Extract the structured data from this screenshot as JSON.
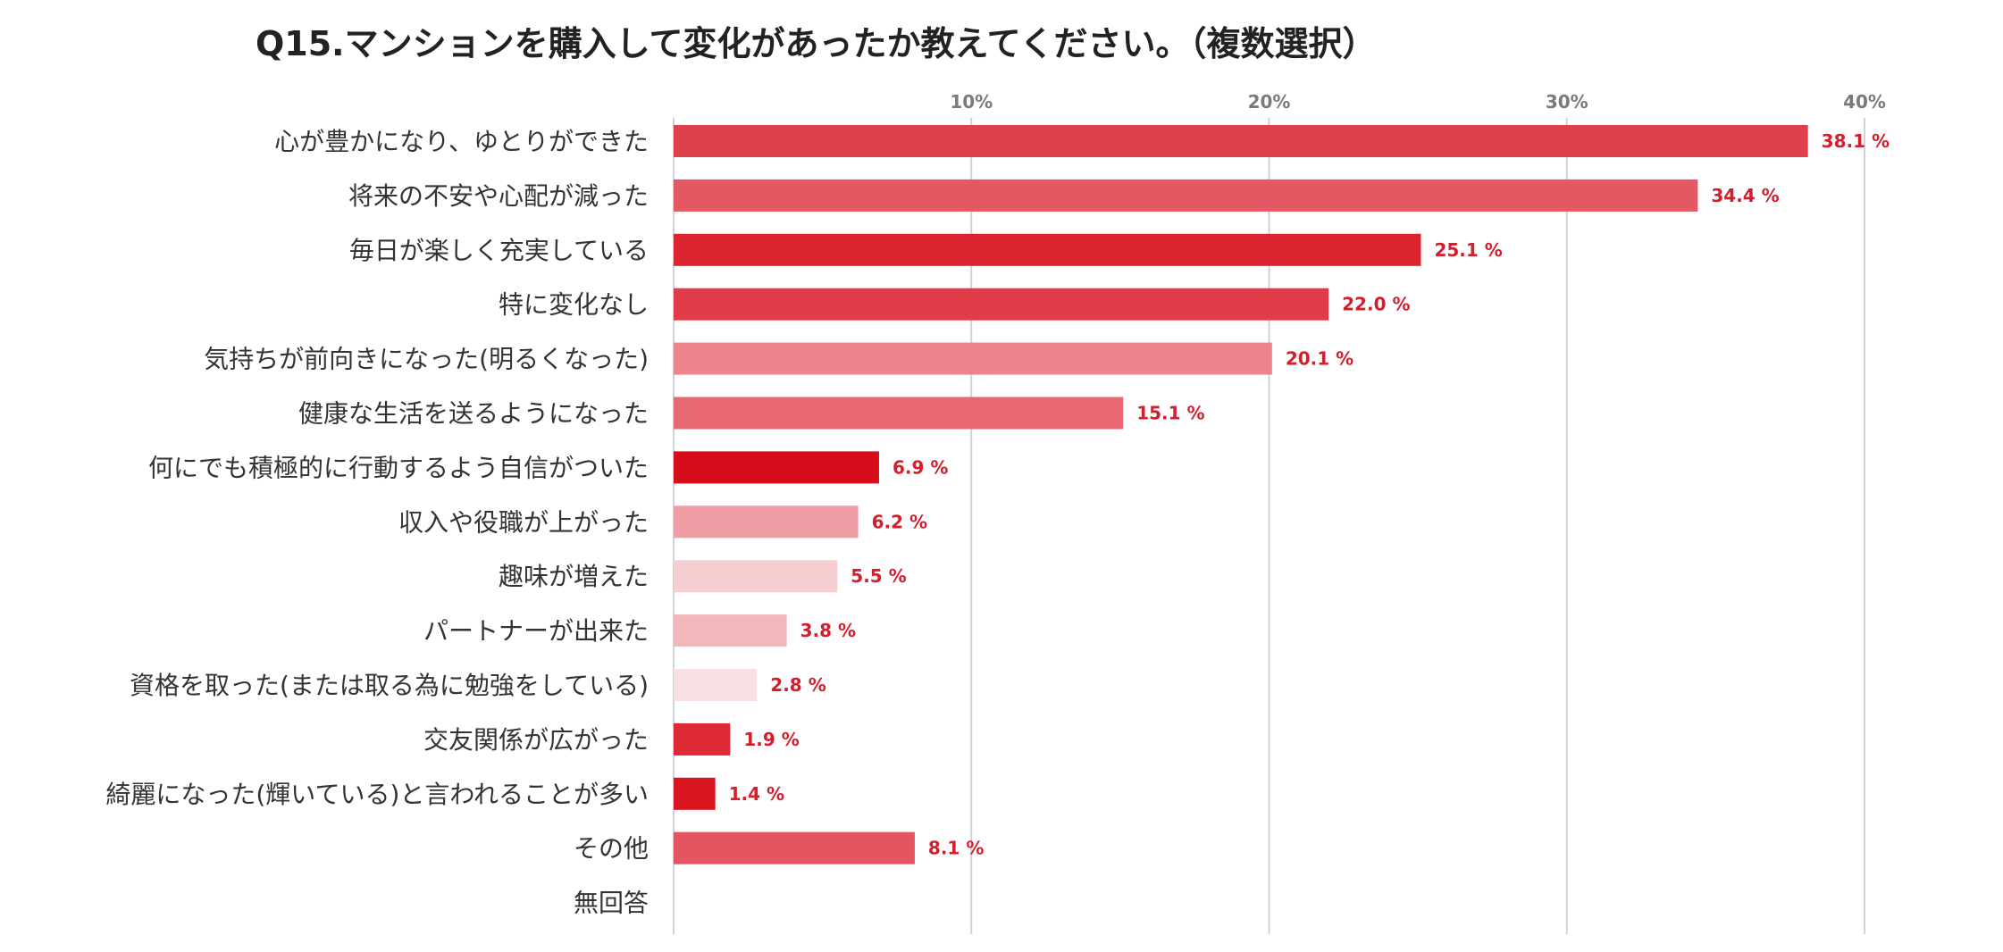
{
  "chart_data": {
    "type": "bar",
    "orientation": "horizontal",
    "title": "Q15.マンションを購入して変化があったか教えてください。（複数選択）",
    "xlabel": "",
    "ylabel": "",
    "xlim": [
      0,
      40
    ],
    "x_ticks": [
      10,
      20,
      30,
      40
    ],
    "x_tick_labels": [
      "10%",
      "20%",
      "30%",
      "40%"
    ],
    "grid": true,
    "unit_suffix": " %",
    "categories": [
      "心が豊かになり、ゆとりができた",
      "将来の不安や心配が減った",
      "毎日が楽しく充実している",
      "特に変化なし",
      "気持ちが前向きになった(明るくなった)",
      "健康な生活を送るようになった",
      "何にでも積極的に行動するよう自信がついた",
      "収入や役職が上がった",
      "趣味が増えた",
      "パートナーが出来た",
      "資格を取った(または取る為に勉強をしている)",
      "交友関係が広がった",
      "綺麗になった(輝いている)と言われることが多い",
      "その他",
      "無回答"
    ],
    "values": [
      38.1,
      34.4,
      25.1,
      22.0,
      20.1,
      15.1,
      6.9,
      6.2,
      5.5,
      3.8,
      2.8,
      1.9,
      1.4,
      8.1,
      null
    ],
    "value_labels": [
      "38.1 %",
      "34.4 %",
      "25.1 %",
      "22.0 %",
      "20.1 %",
      "15.1 %",
      "6.9 %",
      "6.2 %",
      "5.5 %",
      "3.8 %",
      "2.8 %",
      "1.9 %",
      "1.4 %",
      "8.1 %",
      ""
    ],
    "bar_colors": [
      "#e0404c",
      "#e35863",
      "#dc2430",
      "#e03c48",
      "#ec858c",
      "#e76870",
      "#d60d1a",
      "#ee9ea4",
      "#f6cdd0",
      "#f2b7bb",
      "#f9e1e3",
      "#dd2a36",
      "#d8141f",
      "#e4555f",
      "#ffffff"
    ],
    "label_color": "#d21e2d",
    "grid_color": "#ccd3de"
  }
}
